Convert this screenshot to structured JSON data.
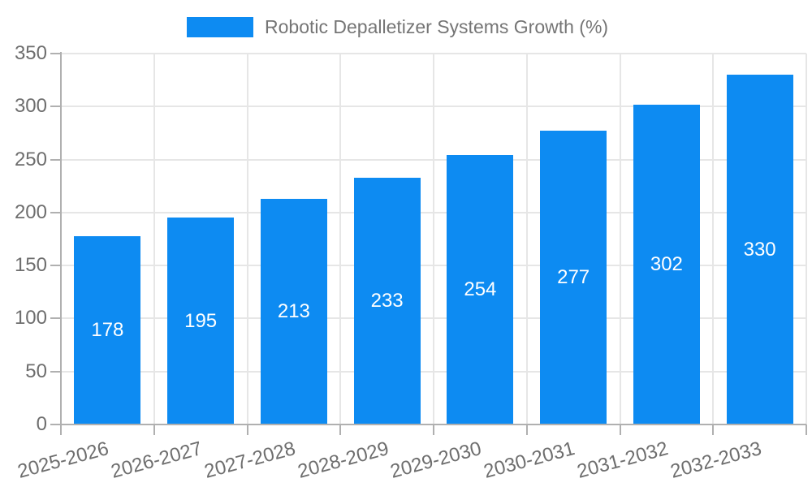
{
  "legend": {
    "label": "Robotic Depalletizer Systems Growth (%)"
  },
  "colors": {
    "bar": "#0d8bf2",
    "grid": "#e6e6e6",
    "axis": "#b0b0b0",
    "tick_text": "#6e6e6e",
    "value_text": "#ffffff",
    "legend_text": "#757575",
    "background": "#ffffff"
  },
  "chart_data": {
    "type": "bar",
    "title": "Robotic Depalletizer Systems Growth (%)",
    "categories": [
      "2025-2026",
      "2026-2027",
      "2027-2028",
      "2028-2029",
      "2029-2030",
      "2030-2031",
      "2031-2032",
      "2032-2033"
    ],
    "values": [
      178,
      195,
      213,
      233,
      254,
      277,
      302,
      330
    ],
    "xlabel": "",
    "ylabel": "",
    "ylim": [
      0,
      350
    ],
    "yticks": [
      0,
      50,
      100,
      150,
      200,
      250,
      300,
      350
    ],
    "grid": true,
    "legend_position": "top",
    "value_labels": "inside-center-white"
  }
}
